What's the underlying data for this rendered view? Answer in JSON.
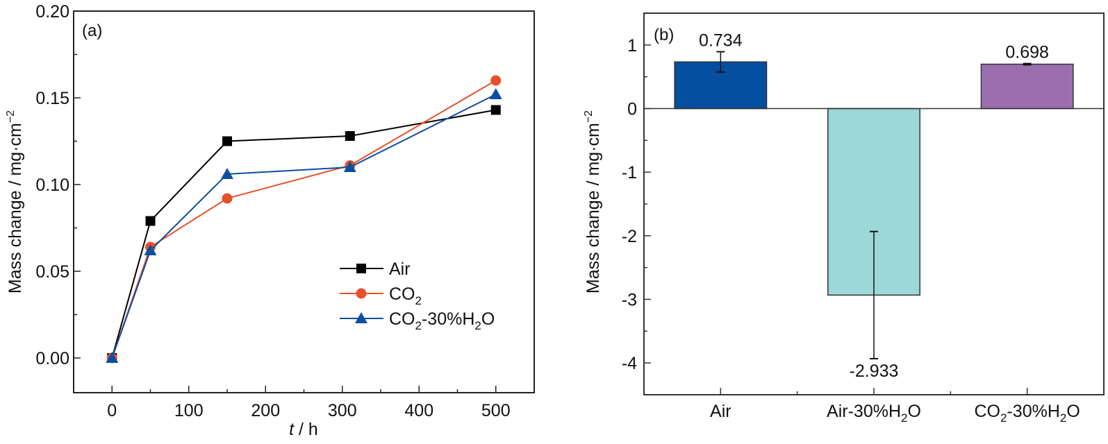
{
  "chart_data": [
    {
      "type": "line",
      "panel_label": "(a)",
      "title": "",
      "xlabel_italic": "t",
      "xlabel_rest": " / h",
      "ylabel": "Mass change / mg·cm",
      "ylabel_sup": "−2",
      "xlim": [
        -50,
        550
      ],
      "ylim": [
        -0.02,
        0.2
      ],
      "xticks": [
        0,
        100,
        200,
        300,
        400,
        500
      ],
      "xtick_labels": [
        "0",
        "100",
        "200",
        "300",
        "400",
        "500"
      ],
      "xminor": [
        50,
        150,
        250,
        350,
        450
      ],
      "yticks": [
        0.0,
        0.05,
        0.1,
        0.15,
        0.2
      ],
      "ytick_labels": [
        "0.00",
        "0.05",
        "0.10",
        "0.15",
        "0.20"
      ],
      "yminor": [
        0.025,
        0.075,
        0.125,
        0.175
      ],
      "grid": false,
      "legend_position": "lower-right",
      "series": [
        {
          "name": "Air",
          "name_main": "Air",
          "name_sub": "",
          "name_tail": "",
          "name_sub2": "",
          "name_tail2": "",
          "marker": "square",
          "color": "#000000",
          "x": [
            0,
            50,
            150,
            310,
            500
          ],
          "y": [
            0.0,
            0.079,
            0.125,
            0.128,
            0.143
          ]
        },
        {
          "name": "CO2",
          "name_main": "CO",
          "name_sub": "2",
          "name_tail": "",
          "name_sub2": "",
          "name_tail2": "",
          "marker": "circle",
          "color": "#e8502a",
          "x": [
            0,
            50,
            150,
            310,
            500
          ],
          "y": [
            0.0,
            0.064,
            0.092,
            0.111,
            0.16
          ]
        },
        {
          "name": "CO2-30%H2O",
          "name_main": "CO",
          "name_sub": "2",
          "name_tail": "-30%H",
          "name_sub2": "2",
          "name_tail2": "O",
          "marker": "triangle",
          "color": "#0d4ea0",
          "x": [
            0,
            50,
            150,
            310,
            500
          ],
          "y": [
            0.0,
            0.062,
            0.106,
            0.11,
            0.152
          ]
        }
      ]
    },
    {
      "type": "bar",
      "panel_label": "(b)",
      "title": "",
      "xlabel": "",
      "ylabel": "Mass change / mg·cm",
      "ylabel_sup": "−2",
      "ylim": [
        -4.5,
        1.5
      ],
      "yticks": [
        -4,
        -3,
        -2,
        -1,
        0,
        1
      ],
      "ytick_labels": [
        "-4",
        "-3",
        "-2",
        "-1",
        "0",
        "1"
      ],
      "yminor": [
        -4.5,
        -3.5,
        -2.5,
        -1.5,
        -0.5,
        0.5
      ],
      "grid": false,
      "zero_line": true,
      "categories": [
        {
          "name": "Air",
          "main": "Air",
          "sub": "",
          "tail": "",
          "sub2": "",
          "tail2": ""
        },
        {
          "name": "Air-30%H2O",
          "main": "Air-30%H",
          "sub": "2",
          "tail": "O",
          "sub2": "",
          "tail2": ""
        },
        {
          "name": "CO2-30%H2O",
          "main": "CO",
          "sub": "2",
          "tail": "-30%H",
          "sub2": "2",
          "tail2": "O"
        }
      ],
      "values": [
        0.734,
        -2.933,
        0.698
      ],
      "errors": [
        0.16,
        1.0,
        0.01
      ],
      "value_labels": [
        "0.734",
        "-2.933",
        "0.698"
      ],
      "colors": [
        "#064ea0",
        "#9dd8d9",
        "#9b6faf"
      ]
    }
  ]
}
